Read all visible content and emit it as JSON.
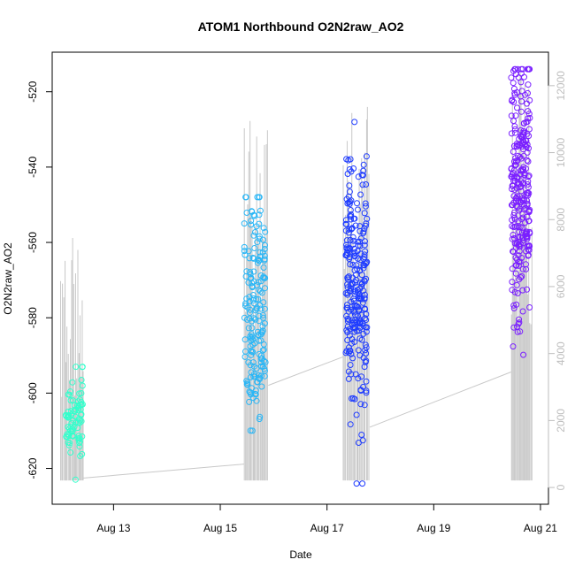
{
  "chart_data": {
    "type": "scatter",
    "title": "ATOM1 Northbound O2N2raw_AO2",
    "xlabel": "Date",
    "ylabel": "O2N2raw_AO2",
    "x_ticks": [
      {
        "day": 13,
        "label": "Aug 13"
      },
      {
        "day": 15,
        "label": "Aug 15"
      },
      {
        "day": 17,
        "label": "Aug 17"
      },
      {
        "day": 19,
        "label": "Aug 19"
      },
      {
        "day": 21,
        "label": "Aug 21"
      }
    ],
    "xlim_days": [
      11.85,
      21.15
    ],
    "ylim": [
      -629.5,
      -509.5
    ],
    "y_ticks": [
      -620,
      -600,
      -580,
      -560,
      -540,
      -520
    ],
    "y2_ticks": [
      0,
      2000,
      4000,
      6000,
      8000,
      10000,
      12000
    ],
    "y2lim": [
      -500,
      13000
    ],
    "grid": false,
    "colors": {
      "series_1": "#33ffcc",
      "series_2": "#29b6f6",
      "series_3": "#1f3cff",
      "series_4": "#7a1fff",
      "gray_trace": "#c8c8c8",
      "axis": "#000000",
      "right_axis": "#bdbdbd"
    },
    "series": [
      {
        "day_range": [
          12.1,
          12.42
        ],
        "y_mean": -606,
        "y_sd": 5.5,
        "y_min": -626,
        "y_max": -593,
        "n": 80
      },
      {
        "day_range": [
          15.45,
          15.85
        ],
        "y_mean": -577,
        "y_sd": 15,
        "y_min": -618,
        "y_max": -548,
        "n": 180
      },
      {
        "day_range": [
          17.35,
          17.75
        ],
        "y_mean": -571,
        "y_sd": 16,
        "y_min": -624,
        "y_max": -526,
        "n": 260
      },
      {
        "day_range": [
          20.45,
          20.8
        ],
        "y_mean": -546,
        "y_sd": 16,
        "y_min": -603,
        "y_max": -514,
        "n": 280
      }
    ],
    "secondary_trace": {
      "name": "",
      "bursts": [
        {
          "day_range": [
            12.0,
            12.45
          ],
          "peak_max": 7600
        },
        {
          "day_range": [
            15.45,
            15.9
          ],
          "peak_max": 11000
        },
        {
          "day_range": [
            17.3,
            17.8
          ],
          "peak_max": 11500
        },
        {
          "day_range": [
            20.45,
            20.85
          ],
          "peak_max": 12500
        }
      ],
      "connectors": [
        {
          "day": [
            12.42,
            15.45
          ],
          "y2": [
            280,
            700
          ]
        },
        {
          "day": [
            15.9,
            17.3
          ],
          "y2": [
            3050,
            3900
          ]
        },
        {
          "day": [
            17.8,
            20.45
          ],
          "y2": [
            1800,
            3450
          ]
        }
      ]
    }
  }
}
